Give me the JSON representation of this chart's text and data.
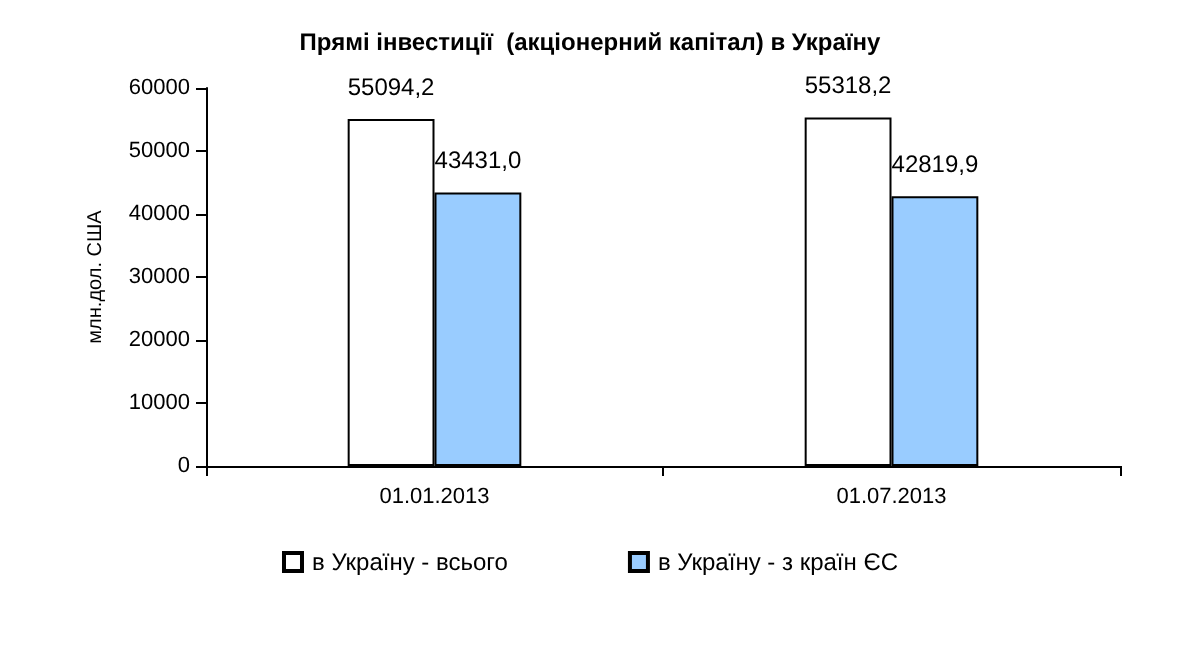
{
  "chart_data": {
    "type": "bar",
    "title": "Прямі інвестиції  (акціонерний капітал) в Україну",
    "ylabel": "млн.дол. США",
    "categories": [
      "01.01.2013",
      "01.07.2013"
    ],
    "series": [
      {
        "name": "в Україну - всього",
        "color": "#ffffff",
        "values": [
          55094.2,
          55318.2
        ],
        "value_labels": [
          "55094,2",
          "55318,2"
        ]
      },
      {
        "name": "в Україну - з країн ЄС",
        "color": "#99ccff",
        "values": [
          43431.0,
          42819.9
        ],
        "value_labels": [
          "43431,0",
          "42819,9"
        ]
      }
    ],
    "ylim": [
      0,
      60000
    ],
    "yticks": [
      0,
      10000,
      20000,
      30000,
      40000,
      50000,
      60000
    ],
    "grid": false,
    "legend": "bottom"
  }
}
